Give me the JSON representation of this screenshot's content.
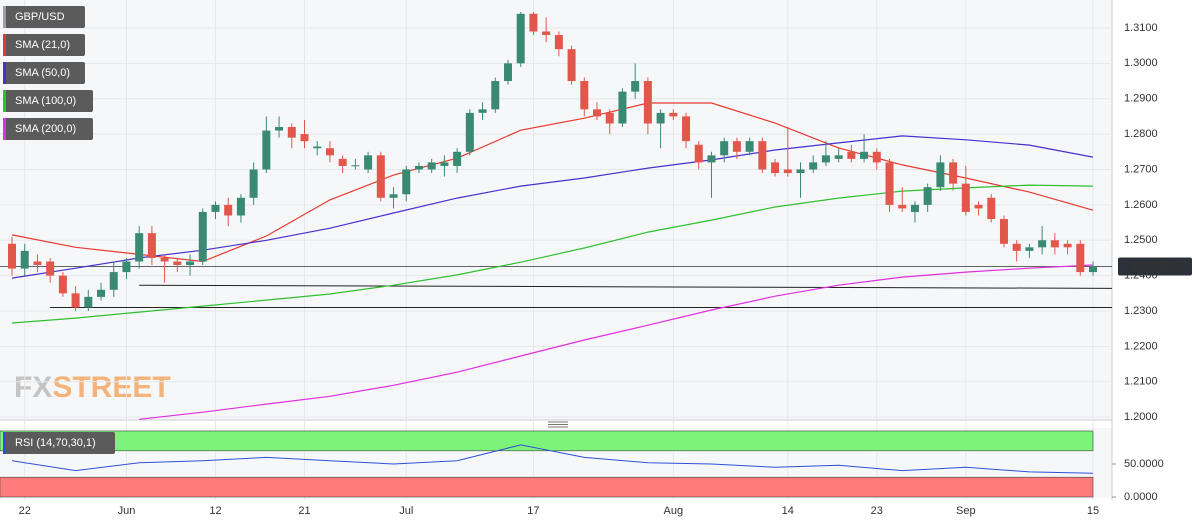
{
  "chart_data": [
    {
      "type": "candlestick",
      "title": "GBP/USD",
      "categories": [
        null,
        "22",
        null,
        null,
        null,
        null,
        null,
        null,
        null,
        "Jun",
        null,
        null,
        null,
        null,
        null,
        null,
        "12",
        null,
        null,
        null,
        null,
        null,
        null,
        "21",
        null,
        null,
        null,
        null,
        null,
        null,
        null,
        "Jul",
        null,
        null,
        null,
        null,
        null,
        null,
        null,
        null,
        null,
        "17",
        null,
        null,
        null,
        null,
        null,
        null,
        null,
        null,
        null,
        null,
        "Aug",
        null,
        null,
        null,
        null,
        null,
        null,
        null,
        null,
        "14",
        null,
        null,
        null,
        null,
        null,
        null,
        "23",
        null,
        null,
        null,
        null,
        null,
        null,
        "Sep",
        null,
        null,
        null,
        null,
        null,
        null,
        null,
        null,
        null,
        "15"
      ],
      "open": [
        1.249,
        1.242,
        1.244,
        1.244,
        1.24,
        1.235,
        1.231,
        1.234,
        1.236,
        1.241,
        1.244,
        1.252,
        1.245,
        1.244,
        1.243,
        1.244,
        1.258,
        1.26,
        1.257,
        1.262,
        1.27,
        1.281,
        1.282,
        1.28,
        1.276,
        1.276,
        1.273,
        1.271,
        1.27,
        1.274,
        1.262,
        1.263,
        1.27,
        1.27,
        1.271,
        1.271,
        1.275,
        1.286,
        1.287,
        1.295,
        1.3,
        1.314,
        1.309,
        1.308,
        1.304,
        1.295,
        1.287,
        1.286,
        1.283,
        1.292,
        1.295,
        1.283,
        1.286,
        1.285,
        1.277,
        1.272,
        1.274,
        1.278,
        1.275,
        1.278,
        1.272,
        1.27,
        1.269,
        1.27,
        1.272,
        1.273,
        1.275,
        1.273,
        1.275,
        1.272,
        1.26,
        1.258,
        1.26,
        1.265,
        1.272,
        1.266,
        1.26,
        1.262,
        1.256,
        1.249,
        1.247,
        1.248,
        1.25,
        1.249,
        1.249,
        1.241
      ],
      "high": [
        1.251,
        1.249,
        1.246,
        1.245,
        1.241,
        1.237,
        1.236,
        1.238,
        1.244,
        1.245,
        1.254,
        1.254,
        1.246,
        1.245,
        1.246,
        1.259,
        1.261,
        1.262,
        1.263,
        1.272,
        1.285,
        1.285,
        1.283,
        1.284,
        1.278,
        1.278,
        1.274,
        1.273,
        1.275,
        1.275,
        1.265,
        1.271,
        1.272,
        1.273,
        1.274,
        1.276,
        1.287,
        1.289,
        1.296,
        1.301,
        1.3145,
        1.3145,
        1.313,
        1.309,
        1.305,
        1.296,
        1.289,
        1.287,
        1.293,
        1.3,
        1.296,
        1.287,
        1.287,
        1.286,
        1.278,
        1.275,
        1.279,
        1.279,
        1.279,
        1.279,
        1.273,
        1.282,
        1.272,
        1.274,
        1.278,
        1.276,
        1.277,
        1.28,
        1.276,
        1.273,
        1.265,
        1.261,
        1.266,
        1.274,
        1.273,
        1.271,
        1.261,
        1.263,
        1.257,
        1.25,
        1.249,
        1.254,
        1.252,
        1.25,
        1.25,
        1.244
      ],
      "low": [
        1.24,
        1.24,
        1.241,
        1.238,
        1.234,
        1.23,
        1.23,
        1.233,
        1.234,
        1.239,
        1.242,
        1.243,
        1.238,
        1.241,
        1.24,
        1.243,
        1.256,
        1.254,
        1.255,
        1.26,
        1.269,
        1.279,
        1.276,
        1.276,
        1.274,
        1.272,
        1.269,
        1.27,
        1.269,
        1.261,
        1.259,
        1.261,
        1.269,
        1.269,
        1.268,
        1.269,
        1.274,
        1.284,
        1.286,
        1.294,
        1.299,
        1.308,
        1.306,
        1.302,
        1.294,
        1.285,
        1.284,
        1.28,
        1.282,
        1.29,
        1.28,
        1.276,
        1.284,
        1.276,
        1.27,
        1.262,
        1.272,
        1.273,
        1.274,
        1.269,
        1.268,
        1.268,
        1.262,
        1.269,
        1.271,
        1.272,
        1.272,
        1.272,
        1.27,
        1.258,
        1.258,
        1.255,
        1.258,
        1.264,
        1.264,
        1.257,
        1.257,
        1.255,
        1.248,
        1.244,
        1.245,
        1.246,
        1.246,
        1.246,
        1.24,
        1.24
      ],
      "close": [
        1.242,
        1.247,
        1.243,
        1.24,
        1.235,
        1.231,
        1.234,
        1.236,
        1.241,
        1.244,
        1.252,
        1.245,
        1.244,
        1.243,
        1.244,
        1.258,
        1.26,
        1.257,
        1.262,
        1.27,
        1.281,
        1.282,
        1.279,
        1.278,
        1.2765,
        1.274,
        1.271,
        1.2712,
        1.274,
        1.262,
        1.263,
        1.27,
        1.271,
        1.272,
        1.272,
        1.275,
        1.286,
        1.287,
        1.295,
        1.3,
        1.314,
        1.309,
        1.308,
        1.304,
        1.295,
        1.287,
        1.285,
        1.283,
        1.292,
        1.295,
        1.283,
        1.286,
        1.285,
        1.278,
        1.272,
        1.274,
        1.278,
        1.275,
        1.278,
        1.27,
        1.269,
        1.269,
        1.27,
        1.272,
        1.274,
        1.274,
        1.273,
        1.275,
        1.272,
        1.26,
        1.259,
        1.26,
        1.265,
        1.272,
        1.266,
        1.258,
        1.259,
        1.256,
        1.249,
        1.247,
        1.248,
        1.25,
        1.248,
        1.248,
        1.241,
        1.24259
      ],
      "up_color": "#3a8a73",
      "down_color": "#e2574c",
      "overlays": [
        {
          "name": "SMA (21,0)",
          "color": "#e8392f",
          "x": [
            0,
            5,
            10,
            15,
            20,
            25,
            30,
            35,
            40,
            45,
            50,
            55,
            60,
            65,
            70,
            75,
            80,
            85
          ],
          "values": [
            1.2515,
            1.248,
            1.246,
            1.244,
            1.2512,
            1.2614,
            1.2684,
            1.2732,
            1.2811,
            1.2845,
            1.2888,
            1.2888,
            1.2831,
            1.2761,
            1.2713,
            1.2676,
            1.2636,
            1.2585
          ]
        },
        {
          "name": "SMA (50,0)",
          "color": "#4a2fcf",
          "x": [
            0,
            5,
            10,
            15,
            20,
            25,
            30,
            35,
            40,
            45,
            50,
            55,
            60,
            65,
            70,
            75,
            80,
            85
          ],
          "values": [
            1.2393,
            1.2421,
            1.245,
            1.2472,
            1.25,
            1.2534,
            1.2577,
            1.2619,
            1.2653,
            1.2676,
            1.2704,
            1.2727,
            1.2755,
            1.2775,
            1.2795,
            1.2784,
            1.2769,
            1.2735
          ]
        },
        {
          "name": "SMA (100,0)",
          "color": "#2ec12e",
          "x": [
            0,
            5,
            10,
            15,
            20,
            25,
            30,
            35,
            40,
            45,
            50,
            55,
            60,
            65,
            70,
            75,
            80,
            85
          ],
          "values": [
            1.2266,
            1.228,
            1.2297,
            1.2314,
            1.2331,
            1.2348,
            1.2373,
            1.2402,
            1.2438,
            1.2478,
            1.2523,
            1.2557,
            1.2594,
            1.2619,
            1.2639,
            1.2648,
            1.2656,
            1.2653
          ]
        },
        {
          "name": "SMA (200,0)",
          "color": "#e02ee0",
          "x": [
            0,
            5,
            10,
            15,
            20,
            25,
            30,
            35,
            40,
            45,
            50,
            55,
            60,
            65,
            70,
            75,
            80,
            85
          ],
          "values": [
            null,
            null,
            1.1994,
            1.2014,
            1.2037,
            1.2059,
            1.209,
            1.2127,
            1.2173,
            1.2218,
            1.226,
            1.2303,
            1.2342,
            1.2373,
            1.2396,
            1.241,
            1.2421,
            1.243
          ]
        }
      ],
      "trendlines": [
        {
          "x": [
            10,
            85
          ],
          "values": [
            1.2373,
            1.2364
          ]
        },
        {
          "x": [
            3,
            85
          ],
          "values": [
            1.231,
            1.231
          ]
        }
      ],
      "last_price": {
        "value": 1.24259,
        "label": "1.242590"
      },
      "ylim": [
        1.1992,
        1.3179
      ],
      "yticks": [
        {
          "value": 1.2,
          "label": "1.2000"
        },
        {
          "value": 1.21,
          "label": "1.2100"
        },
        {
          "value": 1.22,
          "label": "1.2200"
        },
        {
          "value": 1.23,
          "label": "1.2300"
        },
        {
          "value": 1.24,
          "label": "1.2400"
        },
        {
          "value": 1.25,
          "label": "1.2500"
        },
        {
          "value": 1.26,
          "label": "1.2600"
        },
        {
          "value": 1.27,
          "label": "1.2700"
        },
        {
          "value": 1.28,
          "label": "1.2800"
        },
        {
          "value": 1.29,
          "label": "1.2900"
        },
        {
          "value": 1.3,
          "label": "1.3000"
        },
        {
          "value": 1.31,
          "label": "1.3100"
        }
      ],
      "grid": true
    },
    {
      "type": "line",
      "series": [
        {
          "name": "RSI (14,70,30,1)",
          "color": "#2f4fd8",
          "x": [
            0,
            5,
            10,
            15,
            20,
            25,
            30,
            35,
            40,
            45,
            50,
            55,
            60,
            65,
            70,
            75,
            80,
            85
          ],
          "values": [
            55,
            40,
            52,
            55,
            60,
            55,
            50,
            55,
            79,
            60,
            52,
            50,
            45,
            48,
            40,
            45,
            38,
            36
          ]
        }
      ],
      "zones": [
        {
          "range": [
            70,
            100
          ],
          "color": "#7cf47c"
        },
        {
          "range": [
            0,
            30
          ],
          "color": "#ff7b7b"
        }
      ],
      "ylim": [
        0,
        100
      ],
      "yticks": [
        {
          "value": 50,
          "label": "50.0000"
        },
        {
          "value": 0,
          "label": "0.0000"
        }
      ]
    }
  ],
  "watermark": {
    "prefix": "FX",
    "suffix": "STREET"
  }
}
